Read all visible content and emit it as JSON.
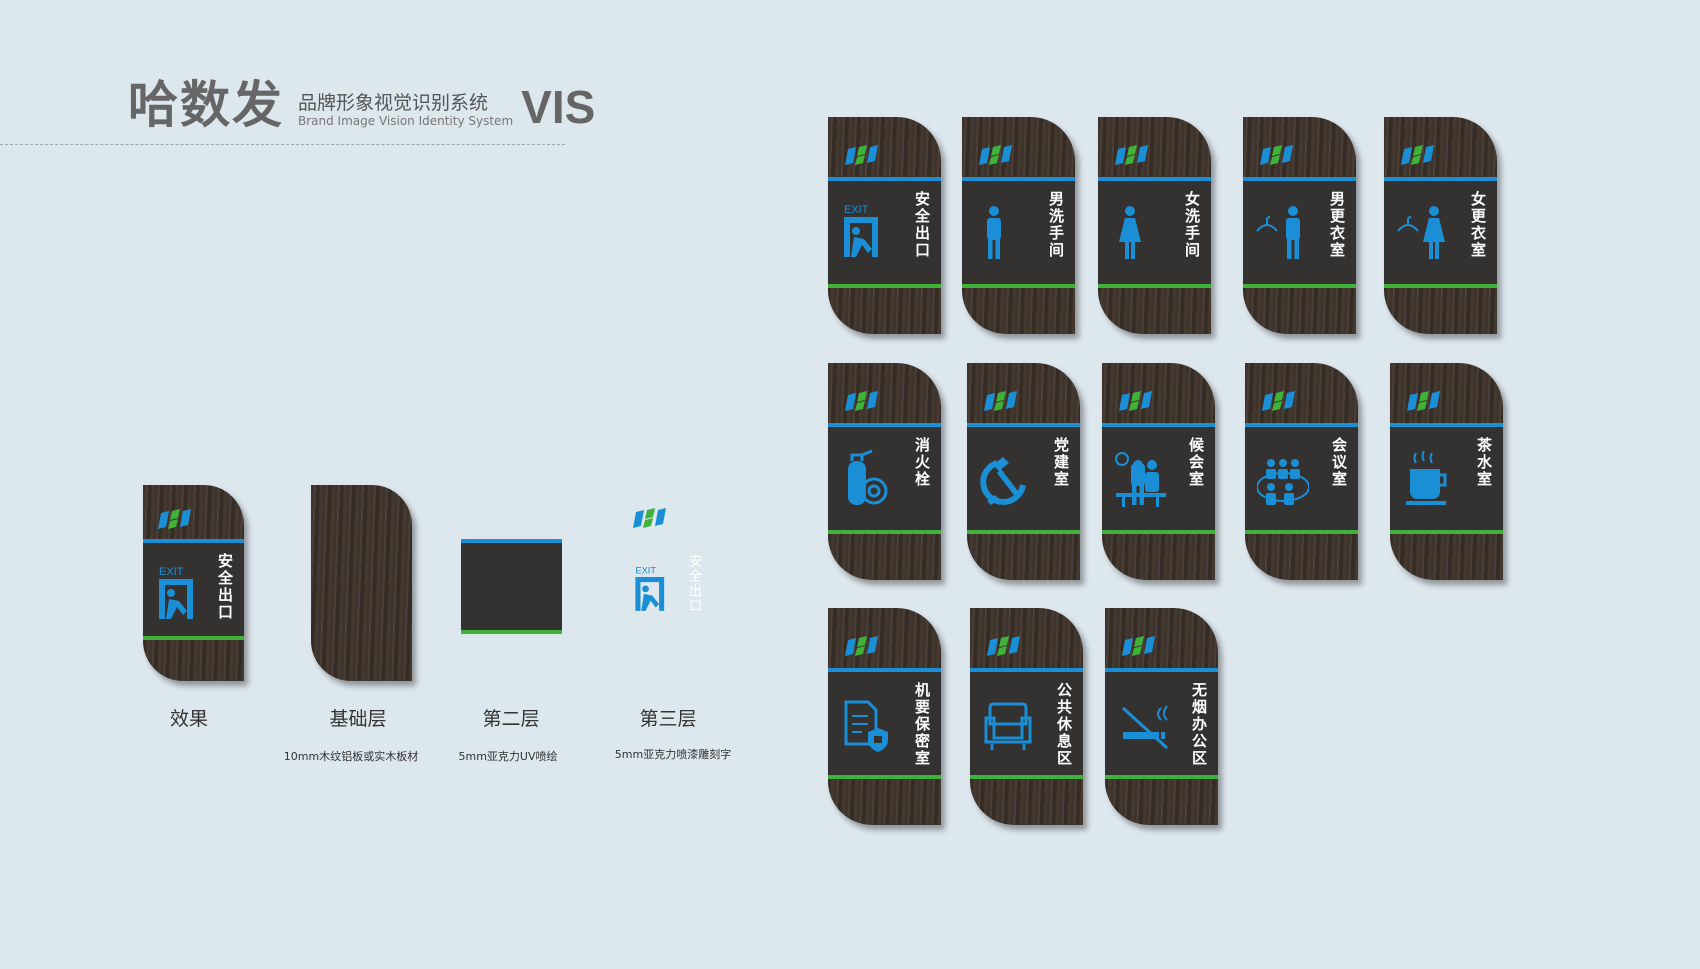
{
  "header": {
    "brand_cn": "哈数发",
    "subtitle_cn": "品牌形象视觉识别系统",
    "subtitle_en": "Brand Image Vision Identity System",
    "vis": "VIS"
  },
  "colors": {
    "blue": "#1a8fd6",
    "green": "#3fb23a",
    "panel": "#343131",
    "wood": "#3e342d",
    "background": "#dde7ee"
  },
  "layers": [
    {
      "label": "效果",
      "note": ""
    },
    {
      "label": "基础层",
      "note": "10mm木纹铝板或实木板材"
    },
    {
      "label": "第二层",
      "note": "5mm亚克力UV喷绘"
    },
    {
      "label": "第三层",
      "note": "5mm亚克力喷漆雕刻字"
    }
  ],
  "exit_text": "EXIT",
  "demo_sign": {
    "text": "安全出口",
    "icon": "exit-icon"
  },
  "signs": [
    {
      "text": "安全出口",
      "icon": "exit-icon"
    },
    {
      "text": "男洗手间",
      "icon": "man-icon"
    },
    {
      "text": "女洗手间",
      "icon": "woman-icon"
    },
    {
      "text": "男更衣室",
      "icon": "man-hanger-icon"
    },
    {
      "text": "女更衣室",
      "icon": "woman-hanger-icon"
    },
    {
      "text": "消火栓",
      "icon": "fire-extinguisher-icon"
    },
    {
      "text": "党建室",
      "icon": "hammer-sickle-icon"
    },
    {
      "text": "候会室",
      "icon": "waiting-people-icon"
    },
    {
      "text": "会议室",
      "icon": "meeting-people-icon"
    },
    {
      "text": "茶水室",
      "icon": "tea-cup-icon"
    },
    {
      "text": "机要保密室",
      "icon": "secure-document-icon"
    },
    {
      "text": "公共休息区",
      "icon": "armchair-icon"
    },
    {
      "text": "无烟办公区",
      "icon": "no-smoking-icon"
    }
  ]
}
